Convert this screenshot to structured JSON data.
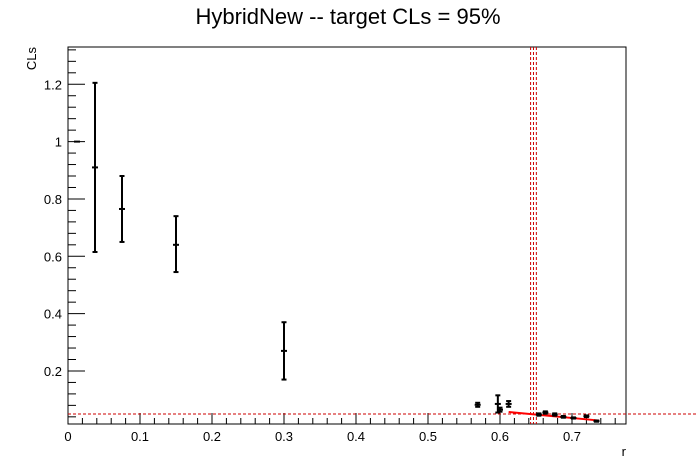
{
  "chart_data": {
    "type": "scatter",
    "title": "HybridNew -- target CLs = 95%",
    "xlabel": "r",
    "ylabel": "CLs",
    "xlim": [
      0,
      0.775
    ],
    "ylim": [
      0.015,
      1.33
    ],
    "x_ticks": [
      "0",
      "0.1",
      "0.2",
      "0.3",
      "0.4",
      "0.5",
      "0.6",
      "0.7"
    ],
    "y_ticks": [
      "0.2",
      "0.4",
      "0.6",
      "0.8",
      "1",
      "1.2"
    ],
    "x_tick_values": [
      0,
      0.1,
      0.2,
      0.3,
      0.4,
      0.5,
      0.6,
      0.7
    ],
    "y_tick_values": [
      0.2,
      0.4,
      0.6,
      0.8,
      1.0,
      1.2
    ],
    "grid": false,
    "colors": {
      "points": "#000000",
      "fit": "#ff0000",
      "reference_lines": "#cc0000"
    },
    "points": [
      {
        "x": 0.0125,
        "y": 1.0,
        "ylo": 1.0,
        "yhi": 1.0
      },
      {
        "x": 0.0375,
        "y": 0.91,
        "ylo": 0.615,
        "yhi": 1.205
      },
      {
        "x": 0.075,
        "y": 0.765,
        "ylo": 0.65,
        "yhi": 0.88
      },
      {
        "x": 0.15,
        "y": 0.64,
        "ylo": 0.545,
        "yhi": 0.74
      },
      {
        "x": 0.3,
        "y": 0.27,
        "ylo": 0.17,
        "yhi": 0.37
      },
      {
        "x": 0.569,
        "y": 0.082,
        "ylo": 0.075,
        "yhi": 0.089
      },
      {
        "x": 0.597,
        "y": 0.085,
        "ylo": 0.055,
        "yhi": 0.115
      },
      {
        "x": 0.6,
        "y": 0.065,
        "ylo": 0.058,
        "yhi": 0.072
      },
      {
        "x": 0.612,
        "y": 0.085,
        "ylo": 0.075,
        "yhi": 0.095
      },
      {
        "x": 0.654,
        "y": 0.048,
        "ylo": 0.044,
        "yhi": 0.052
      },
      {
        "x": 0.663,
        "y": 0.055,
        "ylo": 0.051,
        "yhi": 0.059
      },
      {
        "x": 0.676,
        "y": 0.048,
        "ylo": 0.044,
        "yhi": 0.052
      },
      {
        "x": 0.688,
        "y": 0.04,
        "ylo": 0.037,
        "yhi": 0.043
      },
      {
        "x": 0.702,
        "y": 0.036,
        "ylo": 0.034,
        "yhi": 0.038
      },
      {
        "x": 0.72,
        "y": 0.042,
        "ylo": 0.039,
        "yhi": 0.045
      },
      {
        "x": 0.734,
        "y": 0.025,
        "ylo": 0.023,
        "yhi": 0.027
      }
    ],
    "fit_line": {
      "x": [
        0.612,
        0.738
      ],
      "y": [
        0.057,
        0.027
      ]
    },
    "target_cls": 0.05,
    "limit_r": 0.6465,
    "limit_band": [
      0.6425,
      0.6505
    ]
  }
}
